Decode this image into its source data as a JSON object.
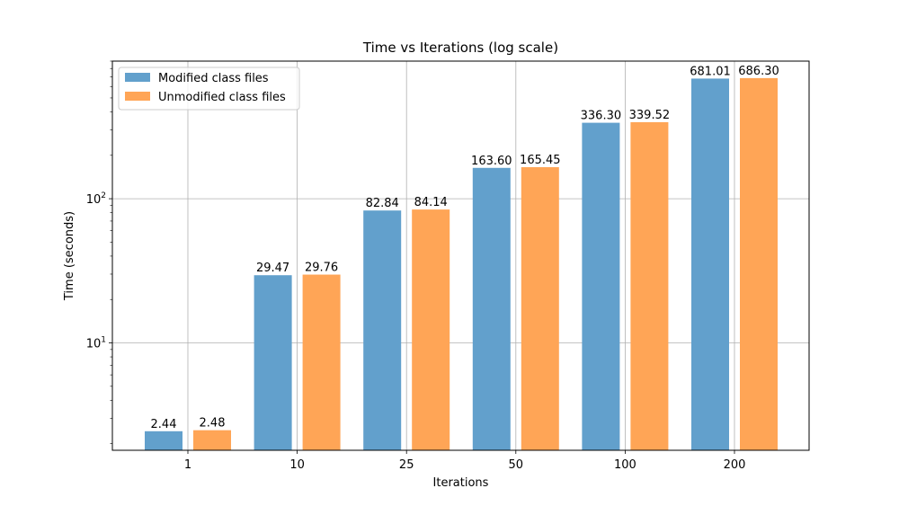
{
  "chart_data": {
    "type": "bar",
    "title": "Time vs Iterations (log scale)",
    "xlabel": "Iterations",
    "ylabel": "Time (seconds)",
    "yscale": "log",
    "ylim": [
      1.8,
      900
    ],
    "y_ticks": [
      {
        "value": 10,
        "base": "10",
        "exp": "1"
      },
      {
        "value": 100,
        "base": "10",
        "exp": "2"
      }
    ],
    "grid": true,
    "legend_position": "upper-left",
    "categories": [
      "1",
      "10",
      "25",
      "50",
      "100",
      "200"
    ],
    "series": [
      {
        "name": "Modified class files",
        "color": "#62a0cc",
        "values": [
          2.44,
          29.47,
          82.84,
          163.6,
          336.3,
          681.01
        ],
        "labels": [
          "2.44",
          "29.47",
          "82.84",
          "163.60",
          "336.30",
          "681.01"
        ]
      },
      {
        "name": "Unmodified class files",
        "color": "#ffa556",
        "values": [
          2.48,
          29.76,
          84.14,
          165.45,
          339.52,
          686.3
        ],
        "labels": [
          "2.48",
          "29.76",
          "84.14",
          "165.45",
          "339.52",
          "686.30"
        ]
      }
    ]
  }
}
